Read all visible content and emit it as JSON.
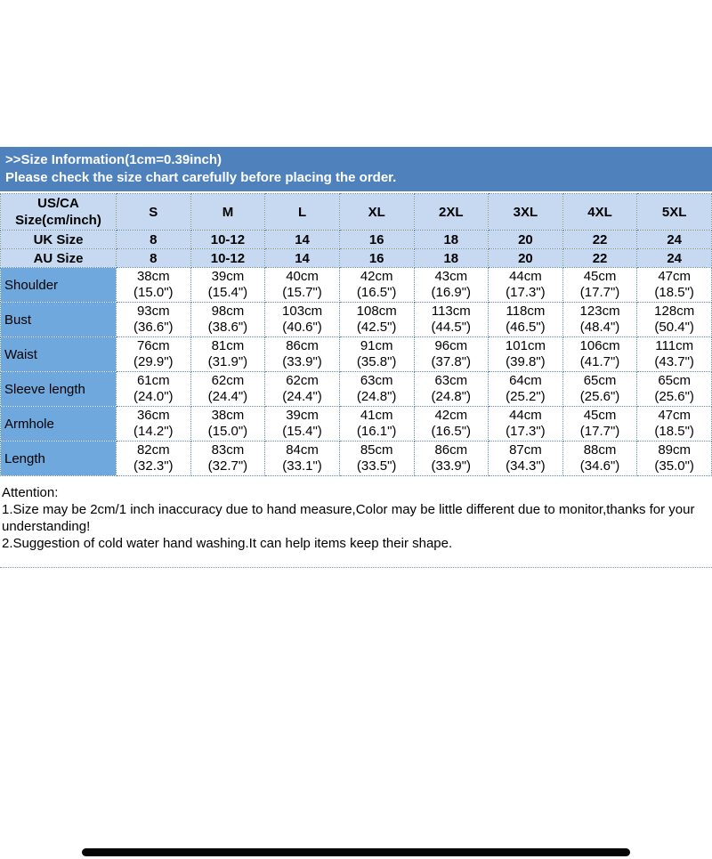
{
  "banner": {
    "line1": ">>Size Information(1cm=0.39inch)",
    "line2": "Please check the size chart carefully before placing the order.",
    "bg_color": "#4f81bd",
    "text_color": "#ffffff"
  },
  "size_table": {
    "corner_header_lines": [
      "US/CA",
      "Size(cm/inch)"
    ],
    "sizes": [
      "S",
      "M",
      "L",
      "XL",
      "2XL",
      "3XL",
      "4XL",
      "5XL"
    ],
    "intl_rows": [
      {
        "label": "UK Size",
        "values": [
          "8",
          "10-12",
          "14",
          "16",
          "18",
          "20",
          "22",
          "24"
        ]
      },
      {
        "label": "AU Size",
        "values": [
          "8",
          "10-12",
          "14",
          "16",
          "18",
          "20",
          "22",
          "24"
        ]
      }
    ],
    "measurement_rows": [
      {
        "label": "Shoulder",
        "cells": [
          [
            "38cm",
            "(15.0\")"
          ],
          [
            "39cm",
            "(15.4\")"
          ],
          [
            "40cm",
            "(15.7\")"
          ],
          [
            "42cm",
            "(16.5\")"
          ],
          [
            "43cm",
            "(16.9\")"
          ],
          [
            "44cm",
            "(17.3\")"
          ],
          [
            "45cm",
            "(17.7\")"
          ],
          [
            "47cm",
            "(18.5\")"
          ]
        ]
      },
      {
        "label": "Bust",
        "cells": [
          [
            "93cm",
            "(36.6\")"
          ],
          [
            "98cm",
            "(38.6\")"
          ],
          [
            "103cm",
            "(40.6\")"
          ],
          [
            "108cm",
            "(42.5\")"
          ],
          [
            "113cm",
            "(44.5\")"
          ],
          [
            "118cm",
            "(46.5\")"
          ],
          [
            "123cm",
            "(48.4\")"
          ],
          [
            "128cm",
            "(50.4\")"
          ]
        ]
      },
      {
        "label": "Waist",
        "cells": [
          [
            "76cm",
            "(29.9\")"
          ],
          [
            "81cm",
            "(31.9\")"
          ],
          [
            "86cm",
            "(33.9\")"
          ],
          [
            "91cm",
            "(35.8\")"
          ],
          [
            "96cm",
            "(37.8\")"
          ],
          [
            "101cm",
            "(39.8\")"
          ],
          [
            "106cm",
            "(41.7\")"
          ],
          [
            "111cm",
            "(43.7\")"
          ]
        ]
      },
      {
        "label": "Sleeve length",
        "cells": [
          [
            "61cm",
            "(24.0\")"
          ],
          [
            "62cm",
            "(24.4\")"
          ],
          [
            "62cm",
            "(24.4\")"
          ],
          [
            "63cm",
            "(24.8\")"
          ],
          [
            "63cm",
            "(24.8\")"
          ],
          [
            "64cm",
            "(25.2\")"
          ],
          [
            "65cm",
            "(25.6\")"
          ],
          [
            "65cm",
            "(25.6\")"
          ]
        ]
      },
      {
        "label": "Armhole",
        "cells": [
          [
            "36cm",
            "(14.2\")"
          ],
          [
            "38cm",
            "(15.0\")"
          ],
          [
            "39cm",
            "(15.4\")"
          ],
          [
            "41cm",
            "(16.1\")"
          ],
          [
            "42cm",
            "(16.5\")"
          ],
          [
            "44cm",
            "(17.3\")"
          ],
          [
            "45cm",
            "(17.7\")"
          ],
          [
            "47cm",
            "(18.5\")"
          ]
        ]
      },
      {
        "label": "Length",
        "cells": [
          [
            "82cm",
            "(32.3\")"
          ],
          [
            "83cm",
            "(32.7\")"
          ],
          [
            "84cm",
            "(33.1\")"
          ],
          [
            "85cm",
            "(33.5\")"
          ],
          [
            "86cm",
            "(33.9\")"
          ],
          [
            "87cm",
            "(34.3\")"
          ],
          [
            "88cm",
            "(34.6\")"
          ],
          [
            "89cm",
            "(35.0\")"
          ]
        ]
      }
    ],
    "colors": {
      "header_bg": "#c6d9f1",
      "label_column_bg": "#6fa8dc",
      "border_dotted": "#5b8ac6"
    }
  },
  "attention": {
    "title": "Attention:",
    "note1": "1.Size may be 2cm/1 inch inaccuracy due to hand measure,Color may be little different due to monitor,thanks for your understanding!",
    "note2": "2.Suggestion of cold water hand washing.It can help items keep their shape."
  }
}
